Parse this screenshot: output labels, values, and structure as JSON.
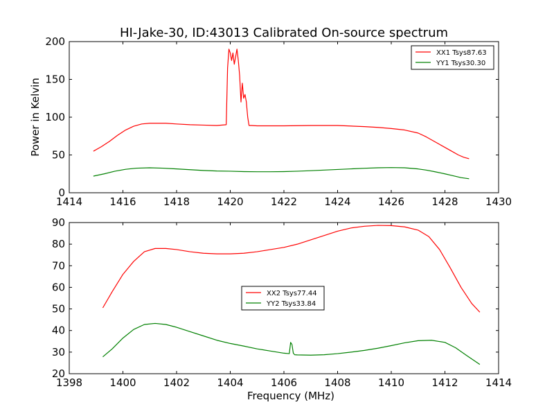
{
  "figure_title": "HI-Jake-30, ID:43013 Calibrated On-source spectrum",
  "chart_data": [
    {
      "type": "line",
      "title": "HI-Jake-30, ID:43013 Calibrated On-source spectrum",
      "xlabel": "",
      "ylabel": "Power in Kelvin",
      "xlim": [
        1414,
        1430
      ],
      "ylim": [
        0,
        200
      ],
      "xticks": [
        1414,
        1416,
        1418,
        1420,
        1422,
        1424,
        1426,
        1428,
        1430
      ],
      "yticks": [
        0,
        50,
        100,
        150,
        200
      ],
      "grid": false,
      "legend_position": "top-right",
      "series": [
        {
          "name": "XX1 Tsys87.63",
          "color": "#ff0000",
          "x": [
            1414.9,
            1415.2,
            1415.5,
            1415.8,
            1416.1,
            1416.4,
            1416.7,
            1417.0,
            1417.3,
            1417.6,
            1418.0,
            1418.5,
            1419.0,
            1419.5,
            1419.85,
            1419.9,
            1419.95,
            1420.0,
            1420.05,
            1420.1,
            1420.15,
            1420.2,
            1420.25,
            1420.3,
            1420.35,
            1420.4,
            1420.45,
            1420.5,
            1420.55,
            1420.6,
            1420.65,
            1420.7,
            1420.8,
            1421.0,
            1421.5,
            1422.0,
            1423.0,
            1424.0,
            1425.0,
            1425.5,
            1426.0,
            1426.5,
            1427.0,
            1427.3,
            1427.6,
            1427.9,
            1428.2,
            1428.5,
            1428.7,
            1428.9
          ],
          "y": [
            55,
            61,
            68,
            76,
            83,
            88,
            91,
            92,
            92,
            92,
            91,
            90,
            89.5,
            89,
            90,
            165,
            190,
            185,
            175,
            185,
            170,
            180,
            190,
            175,
            155,
            120,
            145,
            125,
            130,
            120,
            100,
            89,
            89,
            88.5,
            88.5,
            88.5,
            89,
            89,
            87.5,
            86.5,
            85,
            83,
            79,
            74,
            68,
            62,
            56,
            50,
            47,
            45
          ]
        },
        {
          "name": "YY1 Tsys30.30",
          "color": "#008000",
          "x": [
            1414.9,
            1415.3,
            1415.7,
            1416.1,
            1416.5,
            1417.0,
            1417.5,
            1418.0,
            1418.5,
            1419.0,
            1419.5,
            1420.0,
            1420.5,
            1421.0,
            1421.5,
            1422.0,
            1422.5,
            1423.0,
            1423.5,
            1424.0,
            1424.5,
            1425.0,
            1425.5,
            1426.0,
            1426.5,
            1427.0,
            1427.3,
            1427.6,
            1428.0,
            1428.3,
            1428.6,
            1428.9
          ],
          "y": [
            22,
            25,
            28.5,
            31,
            32.5,
            33,
            32.5,
            31.5,
            30.5,
            29.5,
            28.8,
            28.5,
            28,
            27.8,
            27.8,
            28,
            28.5,
            29.2,
            30,
            30.8,
            31.6,
            32.4,
            33,
            33.3,
            33,
            31.5,
            30,
            28,
            25,
            22.5,
            20,
            18.5
          ]
        }
      ]
    },
    {
      "type": "line",
      "title": "",
      "xlabel": "Frequency (MHz)",
      "ylabel": "",
      "xlim": [
        1398,
        1414
      ],
      "ylim": [
        20,
        90
      ],
      "xticks": [
        1398,
        1400,
        1402,
        1404,
        1406,
        1408,
        1410,
        1412,
        1414
      ],
      "yticks": [
        20,
        30,
        40,
        50,
        60,
        70,
        80,
        90
      ],
      "grid": false,
      "legend_position": "center",
      "series": [
        {
          "name": "XX2 Tsys77.44",
          "color": "#ff0000",
          "x": [
            1399.25,
            1399.6,
            1400.0,
            1400.4,
            1400.8,
            1401.2,
            1401.6,
            1402.0,
            1402.5,
            1403.0,
            1403.5,
            1404.0,
            1404.5,
            1405.0,
            1405.5,
            1406.0,
            1406.5,
            1407.0,
            1407.5,
            1408.0,
            1408.5,
            1409.0,
            1409.5,
            1410.0,
            1410.5,
            1411.0,
            1411.4,
            1411.8,
            1412.2,
            1412.6,
            1413.0,
            1413.3
          ],
          "y": [
            50.5,
            58,
            66,
            72,
            76.5,
            78,
            78,
            77.5,
            76.5,
            75.8,
            75.5,
            75.5,
            75.8,
            76.5,
            77.5,
            78.5,
            80,
            82,
            84,
            86,
            87.5,
            88.3,
            88.7,
            88.6,
            88,
            86.5,
            83.5,
            77.5,
            69,
            60,
            52.5,
            48.5
          ]
        },
        {
          "name": "YY2 Tsys33.84",
          "color": "#008000",
          "x": [
            1399.25,
            1399.6,
            1400.0,
            1400.4,
            1400.8,
            1401.2,
            1401.6,
            1402.0,
            1402.5,
            1403.0,
            1403.5,
            1404.0,
            1404.5,
            1405.0,
            1405.5,
            1406.0,
            1406.2,
            1406.25,
            1406.3,
            1406.35,
            1406.4,
            1406.5,
            1407.0,
            1407.5,
            1408.0,
            1408.5,
            1409.0,
            1409.5,
            1410.0,
            1410.5,
            1411.0,
            1411.5,
            1412.0,
            1412.4,
            1412.8,
            1413.3
          ],
          "y": [
            27.8,
            31.5,
            36.5,
            40.5,
            42.8,
            43.3,
            42.8,
            41.5,
            39.5,
            37.5,
            35.5,
            34,
            32.8,
            31.5,
            30.5,
            29.5,
            29.3,
            34.5,
            33.5,
            29.5,
            28.8,
            28.7,
            28.6,
            28.8,
            29.3,
            30,
            30.8,
            31.8,
            33,
            34.3,
            35.3,
            35.5,
            34.5,
            32,
            28.5,
            24.3
          ]
        }
      ]
    }
  ]
}
